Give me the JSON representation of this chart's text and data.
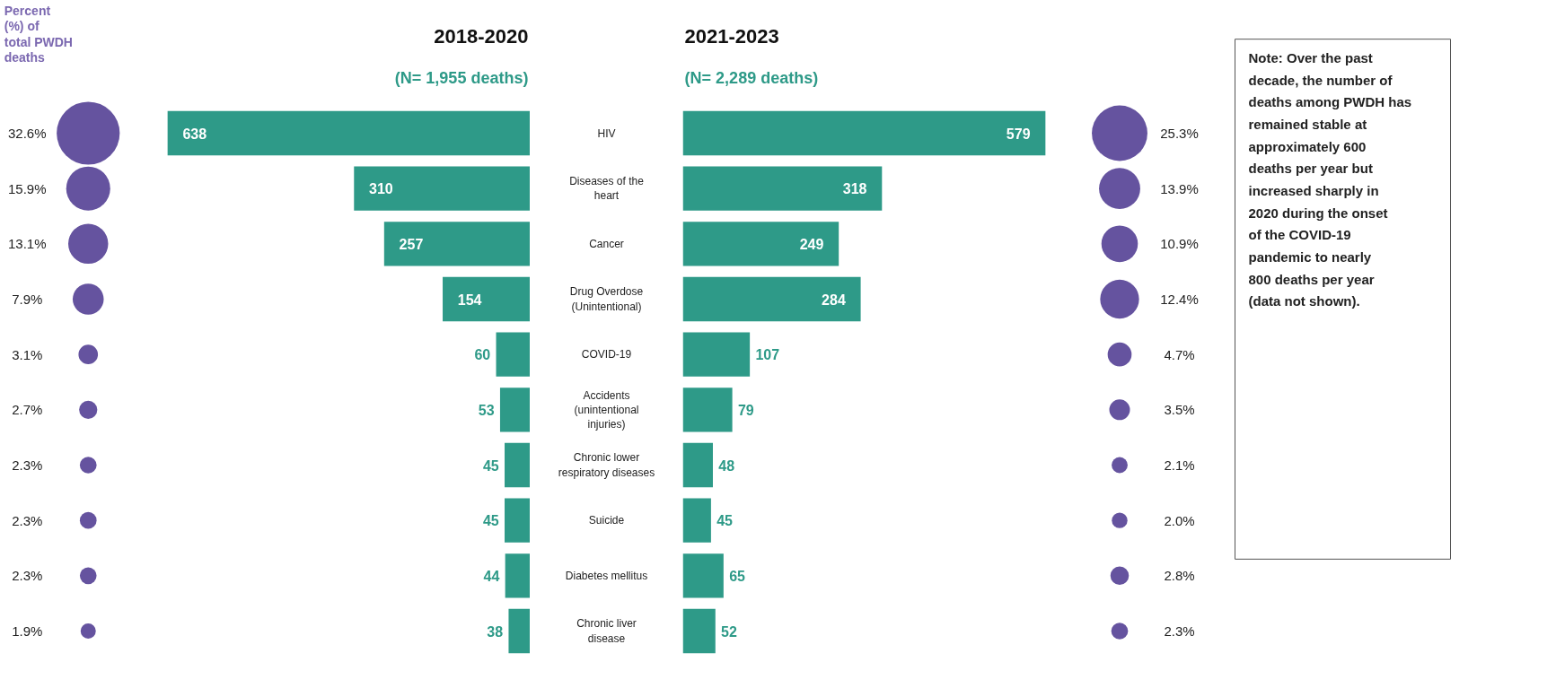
{
  "chart_data": [
    {
      "type": "other",
      "ylabel": "Percent (%) of total PWDH deaths",
      "categories": [
        null,
        null,
        null,
        null,
        null,
        null,
        null,
        null,
        null,
        null
      ],
      "values": [
        32.6,
        15.9,
        13.1,
        7.9,
        3.1,
        2.7,
        2.3,
        2.3,
        2.3,
        1.9
      ],
      "value_labels": [
        "32.6%",
        "15.9%",
        "13.1%",
        "7.9%",
        "3.1%",
        "2.7%",
        "2.3%",
        "2.3%",
        "2.3%",
        "1.9%"
      ],
      "color": "#65539f"
    },
    {
      "type": "bar",
      "orientation": "horizontal",
      "title": "2018-2020",
      "subtitle": "(N= 1,955 deaths)",
      "categories": [
        "HIV",
        "Diseases of the heart",
        "Cancer",
        "Drug Overdose (Unintentional)",
        "COVID-19",
        "Accidents (unintentional injuries)",
        "Chronic lower respiratory diseases",
        "Suicide",
        "Diabetes mellitus",
        "Chronic liver disease"
      ],
      "values": [
        638,
        310,
        257,
        154,
        60,
        53,
        45,
        45,
        44,
        38
      ],
      "color": "#2e9a88",
      "data_labels": true,
      "tick_labels": "y"
    },
    {
      "type": "bar",
      "orientation": "horizontal",
      "title": "2021-2023",
      "subtitle": "(N= 2,289 deaths)",
      "categories": [
        "HIV",
        "Diseases of the heart",
        "Cancer",
        "Drug Overdose (Unintentional)",
        "COVID-19",
        "Accidents (unintentional injuries)",
        "Chronic lower respiratory diseases",
        "Suicide",
        "Diabetes mellitus",
        "Chronic liver disease"
      ],
      "values": [
        579,
        318,
        249,
        284,
        107,
        79,
        48,
        45,
        65,
        52
      ],
      "color": "#2e9a88",
      "data_labels": true,
      "tick_labels": false
    },
    {
      "type": "other",
      "categories": [
        null,
        null,
        null,
        null,
        null,
        null,
        null,
        null,
        null,
        null
      ],
      "values": [
        25.3,
        13.9,
        10.9,
        12.4,
        4.7,
        3.5,
        2.1,
        2.0,
        2.8,
        2.3
      ],
      "value_labels": [
        "25.3%",
        "13.9%",
        "10.9%",
        "12.4%",
        "4.7%",
        "3.5%",
        "2.1%",
        "2.0%",
        "2.8%",
        "2.3%"
      ],
      "color": "#65539f"
    },
    {
      "type": "other",
      "annotations": [
        "Note: Over the past decade, the number of deaths among PWDH has remained stable at approximately 600 deaths per year but increased sharply in 2020 during the onset of the COVID-19 pandemic to nearly 800 deaths per year (data not shown)."
      ]
    }
  ]
}
